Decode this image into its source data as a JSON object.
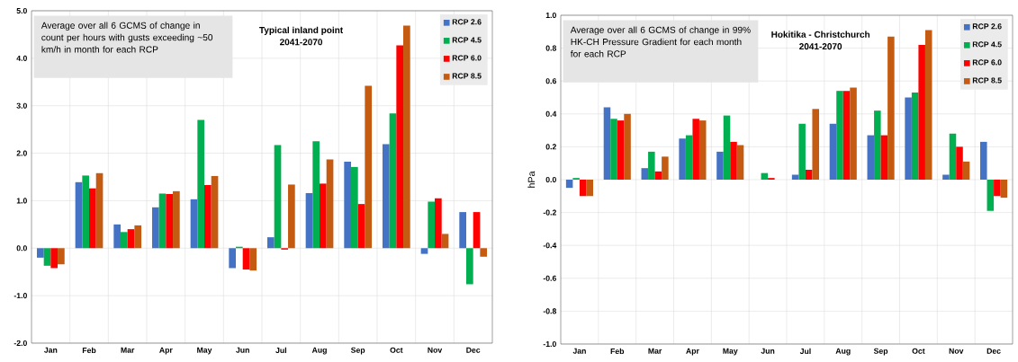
{
  "chart_data": [
    {
      "type": "bar",
      "title": "Typical inland point",
      "subtitle": "2041-2070",
      "annotations": [
        "Average over all 6 GCMS of change in count per hours with gusts exceeding ~50 km/h in month for each RCP"
      ],
      "categories": [
        "Jan",
        "Feb",
        "Mar",
        "Apr",
        "May",
        "Jun",
        "Jul",
        "Aug",
        "Sep",
        "Oct",
        "Nov",
        "Dec"
      ],
      "series": [
        {
          "name": "RCP 2.6",
          "color": "#4472c4",
          "values": [
            -0.2,
            1.39,
            0.5,
            0.86,
            1.03,
            -0.42,
            0.23,
            1.16,
            1.82,
            2.19,
            -0.12,
            0.76
          ]
        },
        {
          "name": "RCP 4.5",
          "color": "#00b050",
          "values": [
            -0.37,
            1.53,
            0.34,
            1.15,
            2.7,
            0.03,
            2.17,
            2.25,
            1.71,
            2.84,
            0.98,
            -0.76
          ]
        },
        {
          "name": "RCP 6.0",
          "color": "#ff0000",
          "values": [
            -0.42,
            1.26,
            0.4,
            1.14,
            1.33,
            -0.45,
            -0.03,
            1.36,
            0.93,
            4.27,
            1.05,
            0.76
          ]
        },
        {
          "name": "RCP 8.5",
          "color": "#c55a11",
          "values": [
            -0.34,
            1.58,
            0.48,
            1.2,
            1.52,
            -0.47,
            1.34,
            1.87,
            3.42,
            4.69,
            0.3,
            -0.18
          ]
        }
      ],
      "ylim": [
        -2,
        5
      ],
      "yticks": [
        {
          "value": -2,
          "label": "-2.0"
        },
        {
          "value": -1,
          "label": "-1.0"
        },
        {
          "value": 0,
          "label": "0.0"
        },
        {
          "value": 1,
          "label": "1.0"
        },
        {
          "value": 2,
          "label": "2.0"
        },
        {
          "value": 3,
          "label": "3.0"
        },
        {
          "value": 4,
          "label": "4.0"
        },
        {
          "value": 5,
          "label": "5.0"
        }
      ],
      "grid": true,
      "legend": "top right"
    },
    {
      "type": "bar",
      "title": "Hokitika - Christchurch",
      "subtitle": "2041-2070",
      "ylabel": "hPa",
      "annotations": [
        "Average over all 6 GCMS of change in 99% HK-CH Pressure Gradient for each month for each RCP"
      ],
      "categories": [
        "Jan",
        "Feb",
        "Mar",
        "Apr",
        "May",
        "Jun",
        "Jul",
        "Aug",
        "Sep",
        "Oct",
        "Nov",
        "Dec"
      ],
      "series": [
        {
          "name": "RCP 2.6",
          "color": "#4472c4",
          "values": [
            -0.05,
            0.44,
            0.07,
            0.25,
            0.17,
            0,
            0.03,
            0.34,
            0.27,
            0.5,
            0.03,
            0.23
          ]
        },
        {
          "name": "RCP 4.5",
          "color": "#00b050",
          "values": [
            0.01,
            0.37,
            0.17,
            0.27,
            0.39,
            0.04,
            0.34,
            0.54,
            0.42,
            0.53,
            0.28,
            -0.19
          ]
        },
        {
          "name": "RCP 6.0",
          "color": "#ff0000",
          "values": [
            -0.1,
            0.36,
            0.05,
            0.37,
            0.23,
            0.01,
            0.06,
            0.54,
            0.27,
            0.82,
            0.2,
            -0.1
          ]
        },
        {
          "name": "RCP 8.5",
          "color": "#c55a11",
          "values": [
            -0.1,
            0.4,
            0.14,
            0.36,
            0.21,
            0,
            0.43,
            0.56,
            0.87,
            0.91,
            0.11,
            -0.11
          ]
        }
      ],
      "ylim": [
        -1,
        1
      ],
      "yticks": [
        {
          "value": -1,
          "label": "-1.0"
        },
        {
          "value": -0.8,
          "label": "-0.8"
        },
        {
          "value": -0.6,
          "label": "-0.6"
        },
        {
          "value": -0.4,
          "label": "-0.4"
        },
        {
          "value": -0.2,
          "label": "-0.2"
        },
        {
          "value": 0,
          "label": "0.0"
        },
        {
          "value": 0.2,
          "label": "0.2"
        },
        {
          "value": 0.4,
          "label": "0.4"
        },
        {
          "value": 0.6,
          "label": "0.6"
        },
        {
          "value": 0.8,
          "label": "0.8"
        },
        {
          "value": 1,
          "label": "1.0"
        }
      ],
      "grid": true,
      "legend": "top right"
    }
  ]
}
